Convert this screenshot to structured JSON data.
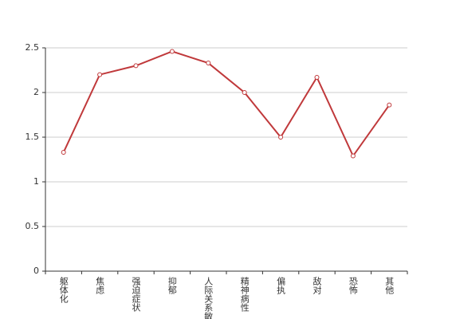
{
  "chart_data": {
    "type": "line",
    "categories": [
      "躯体化",
      "焦虑",
      "强迫症状",
      "抑郁",
      "人际关系敏感",
      "精神病性",
      "偏执",
      "敌对",
      "恐怖",
      "其他"
    ],
    "values": [
      1.33,
      2.2,
      2.3,
      2.46,
      2.33,
      2.0,
      1.5,
      2.17,
      1.29,
      1.86
    ],
    "color": "#c0393b",
    "ylim": [
      0,
      2.5
    ],
    "yticks": [
      0,
      0.5,
      1,
      1.5,
      2,
      2.5
    ],
    "grid": true
  }
}
